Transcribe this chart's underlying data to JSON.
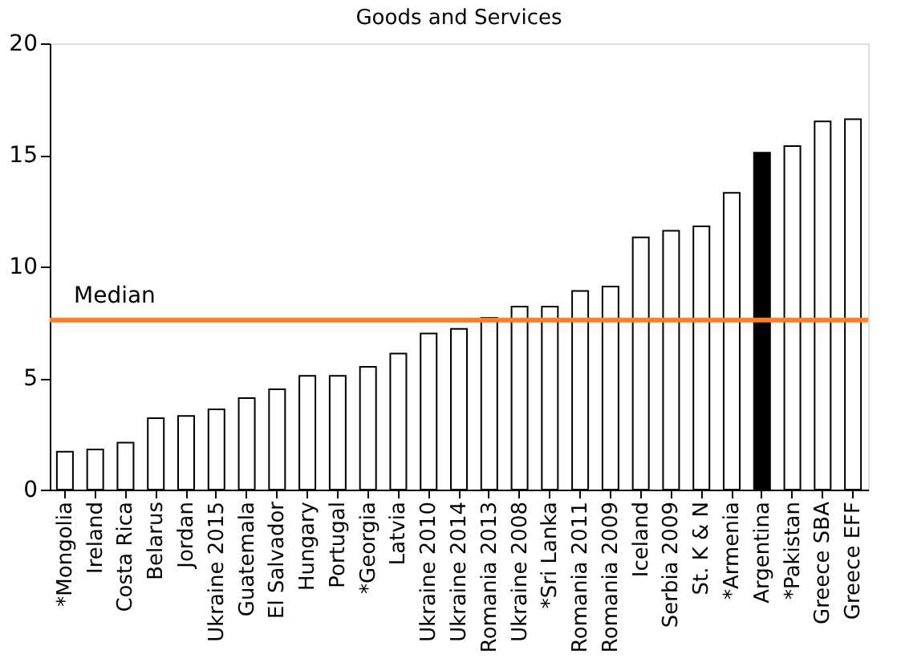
{
  "chart_data": {
    "type": "bar",
    "title": "Goods and Services",
    "categories": [
      "*Mongolia",
      "Ireland",
      "Costa Rica",
      "Belarus",
      "Jordan",
      "Ukraine 2015",
      "Guatemala",
      "El Salvador",
      "Hungary",
      "Portugal",
      "*Georgia",
      "Latvia",
      "Ukraine 2010",
      "Ukraine 2014",
      "Romania 2013",
      "Ukraine 2008",
      "*Sri Lanka",
      "Romania 2011",
      "Romania 2009",
      "Iceland",
      "Serbia 2009",
      "St. K & N",
      "*Armenia",
      "Argentina",
      "*Pakistan",
      "Greece SBA",
      "Greece EFF"
    ],
    "values": [
      1.7,
      1.8,
      2.1,
      3.2,
      3.3,
      3.6,
      4.1,
      4.5,
      5.1,
      5.1,
      5.5,
      6.1,
      7.0,
      7.2,
      7.7,
      8.2,
      8.2,
      8.9,
      9.1,
      11.3,
      11.6,
      11.8,
      13.3,
      15.1,
      15.4,
      16.5,
      16.6
    ],
    "colors": [
      "#ffffff",
      "#ffffff",
      "#ffffff",
      "#ffffff",
      "#ffffff",
      "#ffffff",
      "#ffffff",
      "#ffffff",
      "#ffffff",
      "#ffffff",
      "#ffffff",
      "#ffffff",
      "#ffffff",
      "#ffffff",
      "#ffffff",
      "#ffffff",
      "#ffffff",
      "#ffffff",
      "#ffffff",
      "#ffffff",
      "#ffffff",
      "#ffffff",
      "#ffffff",
      "#000000",
      "#ffffff",
      "#ffffff",
      "#ffffff"
    ],
    "ylim": [
      0,
      20
    ],
    "yticks": [
      0,
      5,
      10,
      15,
      20
    ],
    "grid": false,
    "ref_lines": [
      {
        "axis": "y",
        "value": 7.6,
        "label": "Median",
        "color": "#ff7f27"
      }
    ]
  }
}
